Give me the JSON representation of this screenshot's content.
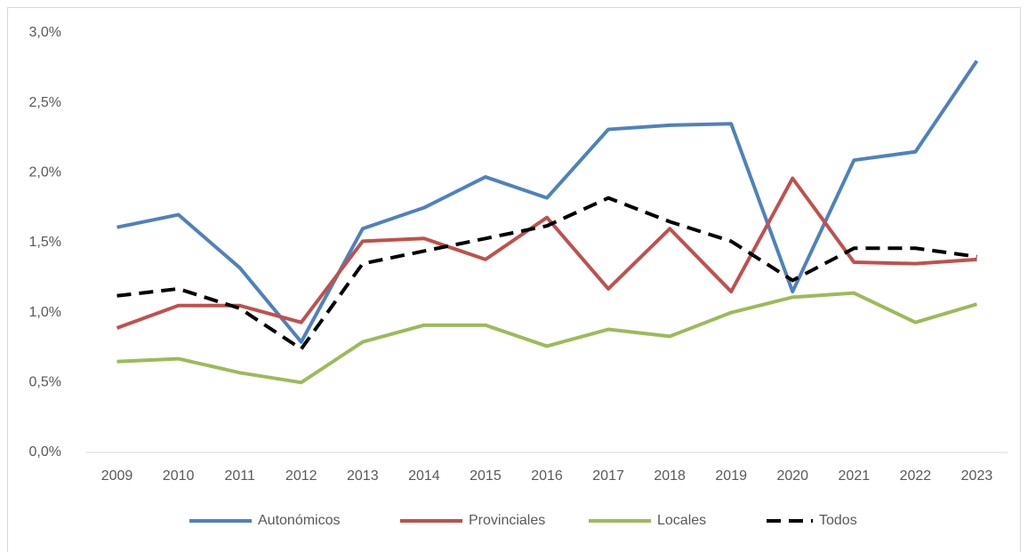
{
  "chart_data": {
    "type": "line",
    "categories": [
      "2009",
      "2010",
      "2011",
      "2012",
      "2013",
      "2014",
      "2015",
      "2016",
      "2017",
      "2018",
      "2019",
      "2020",
      "2021",
      "2022",
      "2023"
    ],
    "series": [
      {
        "name": "Autonómicos",
        "color": "#4f81bd",
        "dash": false,
        "values": [
          1.61,
          1.7,
          1.32,
          0.79,
          1.6,
          1.75,
          1.97,
          1.82,
          2.31,
          2.34,
          2.35,
          1.15,
          2.09,
          2.15,
          2.8
        ]
      },
      {
        "name": "Provinciales",
        "color": "#c0504d",
        "dash": false,
        "values": [
          0.89,
          1.05,
          1.05,
          0.93,
          1.51,
          1.53,
          1.38,
          1.68,
          1.17,
          1.6,
          1.15,
          1.96,
          1.36,
          1.35,
          1.38
        ]
      },
      {
        "name": "Locales",
        "color": "#9bbb59",
        "dash": false,
        "values": [
          0.65,
          0.67,
          0.57,
          0.5,
          0.79,
          0.91,
          0.91,
          0.76,
          0.88,
          0.83,
          1.0,
          1.11,
          1.14,
          0.93,
          1.06
        ]
      },
      {
        "name": "Todos",
        "color": "#000000",
        "dash": true,
        "values": [
          1.12,
          1.17,
          1.03,
          0.74,
          1.35,
          1.44,
          1.53,
          1.62,
          1.82,
          1.65,
          1.51,
          1.23,
          1.46,
          1.46,
          1.4
        ]
      }
    ],
    "ylim": [
      0,
      3
    ],
    "yticks": [
      {
        "value": 0,
        "label": "0,0%"
      },
      {
        "value": 0.5,
        "label": "0,5%"
      },
      {
        "value": 1,
        "label": "1,0%"
      },
      {
        "value": 1.5,
        "label": "1,5%"
      },
      {
        "value": 2,
        "label": "2,0%"
      },
      {
        "value": 2.5,
        "label": "2,5%"
      },
      {
        "value": 3,
        "label": "3,0%"
      }
    ],
    "grid": false,
    "legend": "bottom"
  }
}
